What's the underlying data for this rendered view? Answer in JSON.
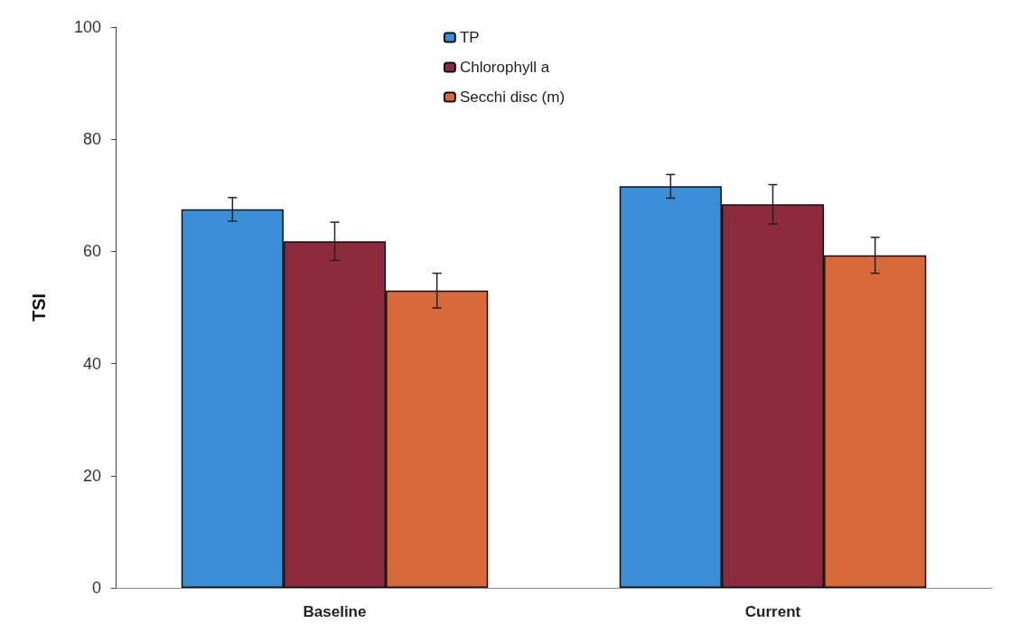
{
  "chart_data": {
    "type": "bar",
    "ylabel": "TSI",
    "categories": [
      "Baseline",
      "Current"
    ],
    "series": [
      {
        "name": "TP",
        "color": "#3a8fd6",
        "values": [
          67.5,
          71.6
        ],
        "errors": [
          2.1,
          2.1
        ]
      },
      {
        "name": "Chlorophyll a",
        "color": "#8c2a3e",
        "values": [
          61.8,
          68.4
        ],
        "errors": [
          3.4,
          3.5
        ]
      },
      {
        "name": "Secchi disc (m)",
        "color": "#d8693a",
        "values": [
          53.0,
          59.3
        ],
        "errors": [
          3.1,
          3.2
        ]
      }
    ],
    "ylim": [
      0,
      100
    ],
    "yticks": [
      0,
      20,
      40,
      60,
      80,
      100
    ],
    "grid": false,
    "legend": "top"
  }
}
